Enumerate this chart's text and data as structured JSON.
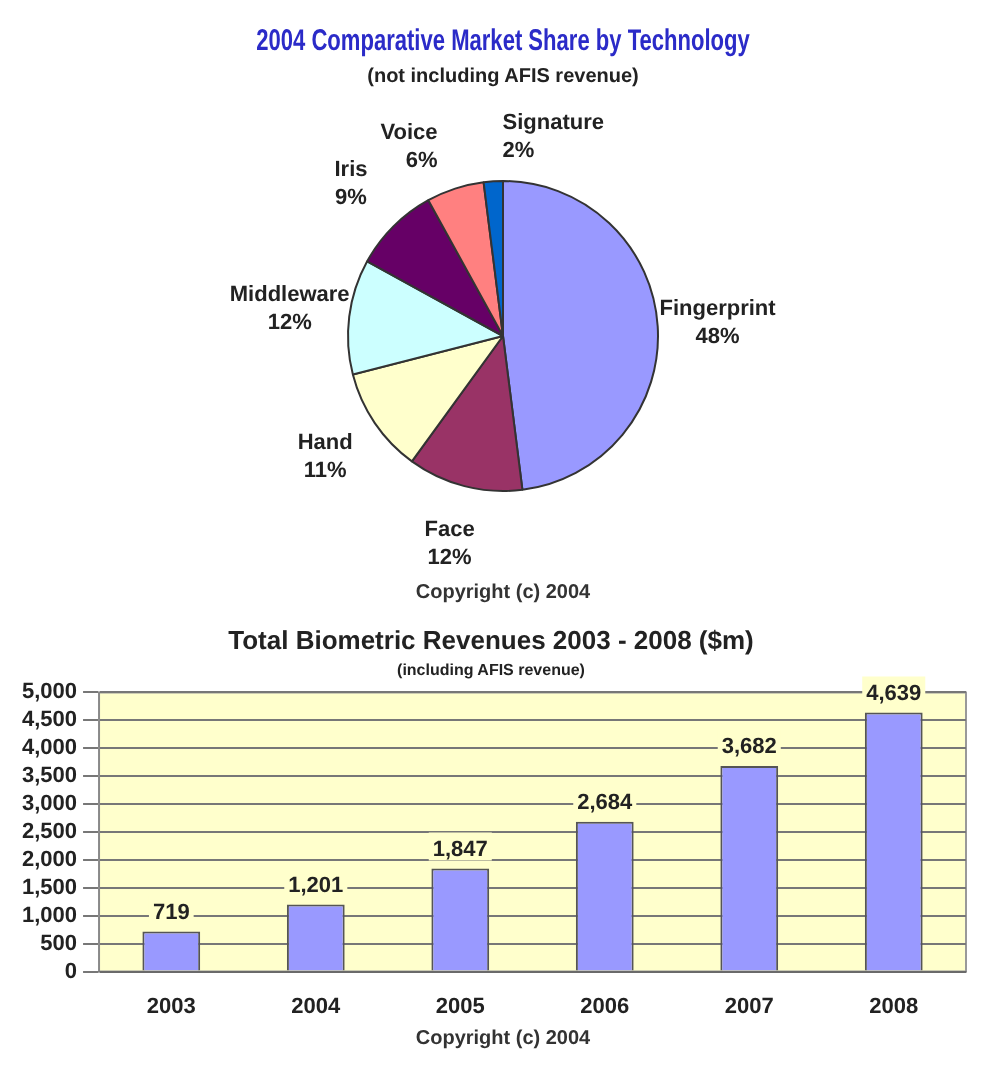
{
  "chart_data": [
    {
      "type": "pie",
      "title": "2004 Comparative Market Share by Technology",
      "subtitle": "(not including AFIS revenue)",
      "categories": [
        "Fingerprint",
        "Face",
        "Hand",
        "Middleware",
        "Iris",
        "Voice",
        "Signature"
      ],
      "values": [
        48,
        12,
        11,
        12,
        9,
        6,
        2
      ],
      "value_labels": [
        "48%",
        "12%",
        "11%",
        "12%",
        "9%",
        "6%",
        "2%"
      ],
      "colors": [
        "#9999ff",
        "#993366",
        "#ffffcc",
        "#ccffff",
        "#660066",
        "#ff8080",
        "#0066cc"
      ],
      "legend": false,
      "annotations": [
        "Copyright (c) 2004"
      ]
    },
    {
      "type": "bar",
      "title": "Total Biometric Revenues 2003 - 2008 ($m)",
      "subtitle": "(including AFIS revenue)",
      "categories": [
        "2003",
        "2004",
        "2005",
        "2006",
        "2007",
        "2008"
      ],
      "values": [
        719,
        1201,
        1847,
        2684,
        3682,
        4639
      ],
      "value_labels": [
        "719",
        "1,201",
        "1,847",
        "2,684",
        "3,682",
        "4,639"
      ],
      "color": "#9999ff",
      "ylim": [
        0,
        5000
      ],
      "yticks": [
        0,
        {
          "value": 500,
          "label": "500"
        },
        {
          "value": 1000,
          "label": "1,000"
        },
        {
          "value": 1500,
          "label": "1,500"
        },
        {
          "value": 2000,
          "label": "2,000"
        },
        {
          "value": 2500,
          "label": "2,500"
        },
        {
          "value": 3000,
          "label": "3,000"
        },
        {
          "value": 3500,
          "label": "3,500"
        },
        {
          "value": 4000,
          "label": "4,000"
        },
        {
          "value": 4500,
          "label": "4,500"
        },
        {
          "value": 5000,
          "label": "5,000"
        }
      ],
      "grid": "y",
      "legend": false,
      "annotations": [
        "Copyright (c) 2004"
      ]
    }
  ]
}
